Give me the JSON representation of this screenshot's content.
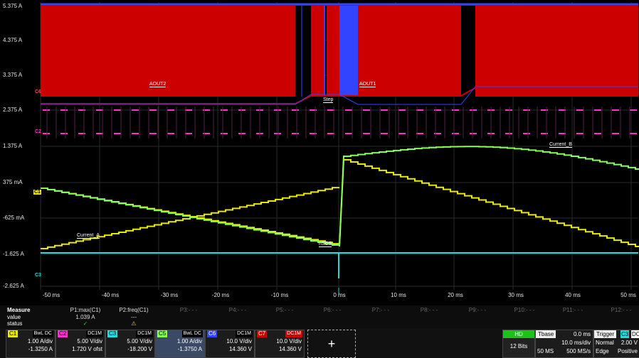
{
  "y_axis_labels": [
    "5.375 A",
    "4.375 A",
    "3.375 A",
    "2.375 A",
    "1.375 A",
    "375 mA",
    "-625 mA",
    "-1.625 A",
    "-2.625 A"
  ],
  "x_axis_labels": [
    "-50 ms",
    "-40 ms",
    "-30 ms",
    "-20 ms",
    "-10 ms",
    "0 ms",
    "10 ms",
    "20 ms",
    "30 ms",
    "40 ms",
    "50 ms"
  ],
  "trace_labels": {
    "aout2": "AOUT2",
    "aout1": "AOUT1",
    "step": "Step",
    "current_b": "Current_B",
    "current_a": "Current_A",
    "nscs": "nSCS"
  },
  "channel_markers": {
    "c6": "C6",
    "c2": "C2",
    "c1": "C1",
    "c3": "C3"
  },
  "colors": {
    "c1": "#e8e800",
    "c2": "#ff33cc",
    "c3": "#22dddd",
    "c5": "#88ff55",
    "c6": "#3344ff",
    "c7": "#cc0000",
    "grid": "#2a2a2a"
  },
  "measure": {
    "title": "Measure",
    "row_value": "value",
    "row_status": "status",
    "params": [
      "P1:max(C1)",
      "P2:freq(C1)",
      "P3:- - -",
      "P4:- - -",
      "P5:- - -",
      "P6:- - -",
      "P7:- - -",
      "P8:- - -",
      "P9:- - -",
      "P10:- - -",
      "P11:- - -",
      "P12:- - -"
    ],
    "p1_value": "1.039 A",
    "p2_value": "---",
    "p1_status_icon": "check-icon",
    "p2_status_icon": "warning-icon",
    "p1_status": "✓",
    "p2_status": "⚠"
  },
  "channels": [
    {
      "name": "C1",
      "tag": "BwL DC",
      "line1": "1.00 A/div",
      "line2": "-1.3250 A"
    },
    {
      "name": "C2",
      "tag": "DC1M",
      "line1": "5.00 V/div",
      "line2": "1.720 V ofst"
    },
    {
      "name": "C3",
      "tag": "DC1M",
      "line1": "5.00 V/div",
      "line2": "-18.200 V"
    },
    {
      "name": "C5",
      "tag": "BwL DC",
      "line1": "1.00 A/div",
      "line2": "-1.3750 A"
    },
    {
      "name": "C6",
      "tag": "DC1M",
      "line1": "10.0 V/div",
      "line2": "14.360 V"
    },
    {
      "name": "C7",
      "tag": "DC1M",
      "line1": "10.0 V/div",
      "line2": "14.360 V"
    }
  ],
  "add_button": "+",
  "hd": {
    "title": "HD",
    "bits": "12 Bits"
  },
  "timebase": {
    "title": "Tbase",
    "offset": "0.0 ms",
    "div": "10.0 ms/div",
    "samples": "50 MS",
    "rate": "500 MS/s"
  },
  "trigger": {
    "title": "Trigger",
    "channel": "C3",
    "coupling": "DC",
    "mode": "Normal",
    "level": "2.00 V",
    "type": "Edge",
    "slope": "Positive"
  }
}
